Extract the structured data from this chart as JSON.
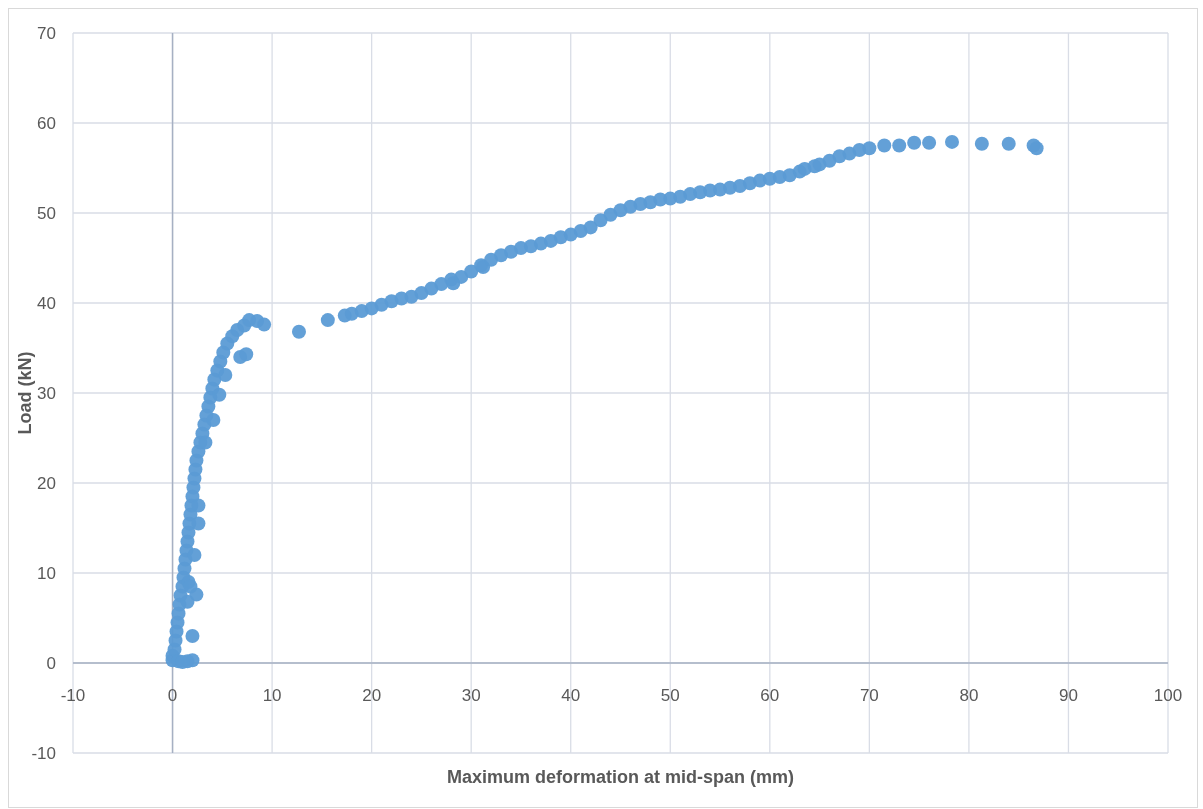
{
  "chart_data": {
    "type": "scatter",
    "xlabel": "Maximum deformation at mid-span (mm)",
    "ylabel": "Load (kN)",
    "xlim": [
      -10,
      100
    ],
    "ylim": [
      -10,
      70
    ],
    "xticks": [
      -10,
      0,
      10,
      20,
      30,
      40,
      50,
      60,
      70,
      80,
      90,
      100
    ],
    "yticks": [
      -10,
      0,
      10,
      20,
      30,
      40,
      50,
      60,
      70
    ],
    "grid": true,
    "marker": "circle",
    "series": [
      {
        "color": "#5b9bd5",
        "x": [
          0,
          0,
          0.2,
          0.3,
          0.4,
          0.5,
          0.6,
          0.7,
          0.8,
          1.0,
          1.1,
          1.2,
          1.3,
          1.4,
          1.5,
          1.6,
          1.7,
          1.8,
          1.9,
          2.0,
          2.1,
          2.2,
          2.3,
          2.4,
          2.6,
          2.8,
          3.0,
          3.2,
          3.4,
          3.6,
          3.8,
          4.0,
          4.2,
          4.5,
          4.8,
          5.1,
          5.5,
          6.0,
          6.5,
          7.2,
          7.7,
          8.5,
          9.2,
          1.5,
          2.0,
          2.0,
          2.4,
          1.6,
          2.2,
          2.6,
          2.6,
          3.3,
          4.1,
          4.7,
          5.3,
          6.8,
          7.4,
          0.6,
          1.0,
          1.5,
          1.8,
          12.7,
          15.6,
          17.3,
          18,
          19,
          20,
          21,
          22,
          23,
          24,
          25,
          26,
          27,
          28,
          28.2,
          29,
          30,
          31,
          31.2,
          32,
          33,
          34,
          35,
          36,
          37,
          38,
          39,
          40,
          41,
          42,
          43,
          44,
          45,
          46,
          47,
          48,
          49,
          50,
          51,
          52,
          53,
          54,
          55,
          56,
          57,
          58,
          59,
          60,
          61,
          62,
          63,
          63.5,
          64.5,
          65,
          66,
          67,
          68,
          69,
          70,
          71.5,
          73,
          74.5,
          76,
          78.3,
          81.3,
          84,
          86.5,
          86.8
        ],
        "values": [
          0.3,
          0.8,
          1.5,
          2.5,
          3.5,
          4.5,
          5.5,
          6.5,
          7.5,
          8.5,
          9.5,
          10.5,
          11.5,
          12.5,
          13.5,
          14.5,
          15.5,
          16.5,
          17.5,
          18.5,
          19.5,
          20.5,
          21.5,
          22.5,
          23.5,
          24.5,
          25.5,
          26.5,
          27.5,
          28.5,
          29.5,
          30.5,
          31.5,
          32.5,
          33.5,
          34.5,
          35.5,
          36.3,
          37,
          37.5,
          38.1,
          38,
          37.6,
          0.2,
          0.3,
          3.0,
          7.6,
          9.0,
          12,
          15.5,
          17.5,
          24.5,
          27,
          29.8,
          32,
          34,
          34.3,
          0.2,
          0.1,
          6.8,
          8.5,
          36.8,
          38.1,
          38.6,
          38.8,
          39.1,
          39.4,
          39.8,
          40.2,
          40.5,
          40.7,
          41.1,
          41.6,
          42.1,
          42.6,
          42.2,
          42.9,
          43.5,
          44.2,
          44,
          44.8,
          45.3,
          45.7,
          46.1,
          46.3,
          46.6,
          46.9,
          47.3,
          47.6,
          48,
          48.4,
          49.2,
          49.8,
          50.3,
          50.7,
          51,
          51.2,
          51.5,
          51.6,
          51.8,
          52.1,
          52.3,
          52.5,
          52.6,
          52.8,
          53,
          53.3,
          53.6,
          53.8,
          54,
          54.2,
          54.6,
          54.9,
          55.2,
          55.4,
          55.8,
          56.3,
          56.6,
          57,
          57.2,
          57.5,
          57.5,
          57.8,
          57.8,
          57.9,
          57.7,
          57.7,
          57.5,
          57.2
        ]
      }
    ]
  }
}
